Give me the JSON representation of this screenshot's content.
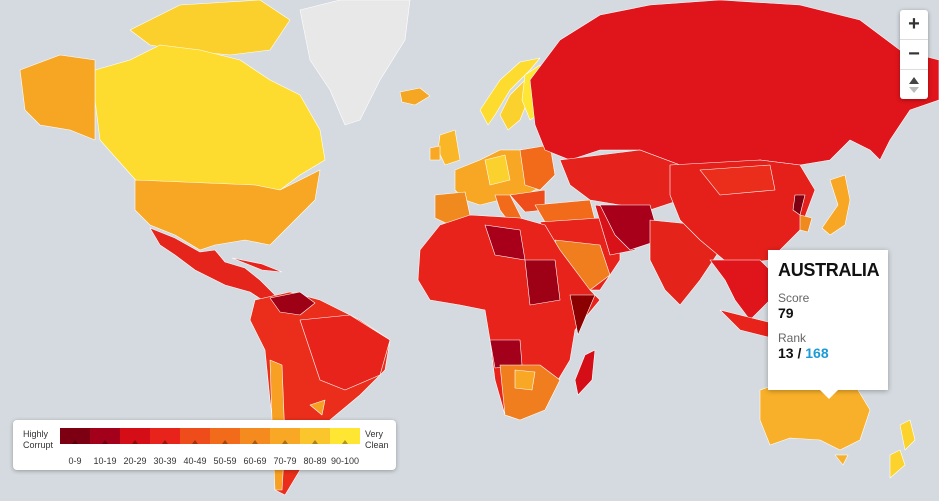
{
  "controls": {
    "zoom_in": "+",
    "zoom_out": "−"
  },
  "tooltip": {
    "title": "AUSTRALIA",
    "score_label": "Score",
    "score": 79,
    "rank_label": "Rank",
    "rank": 13,
    "rank_separator": "/",
    "rank_total": 168
  },
  "legend": {
    "low_label": "Highly Corrupt",
    "high_label": "Very Clean",
    "bins": [
      {
        "label": "0-9",
        "color": "#7d0012"
      },
      {
        "label": "10-19",
        "color": "#a3001c"
      },
      {
        "label": "20-29",
        "color": "#d40d17"
      },
      {
        "label": "30-39",
        "color": "#e8231b"
      },
      {
        "label": "40-49",
        "color": "#ef4c1b"
      },
      {
        "label": "50-59",
        "color": "#f26b1b"
      },
      {
        "label": "60-69",
        "color": "#f58a1f"
      },
      {
        "label": "70-79",
        "color": "#f8a824"
      },
      {
        "label": "80-89",
        "color": "#fbc62c"
      },
      {
        "label": "90-100",
        "color": "#fee633"
      }
    ]
  }
}
